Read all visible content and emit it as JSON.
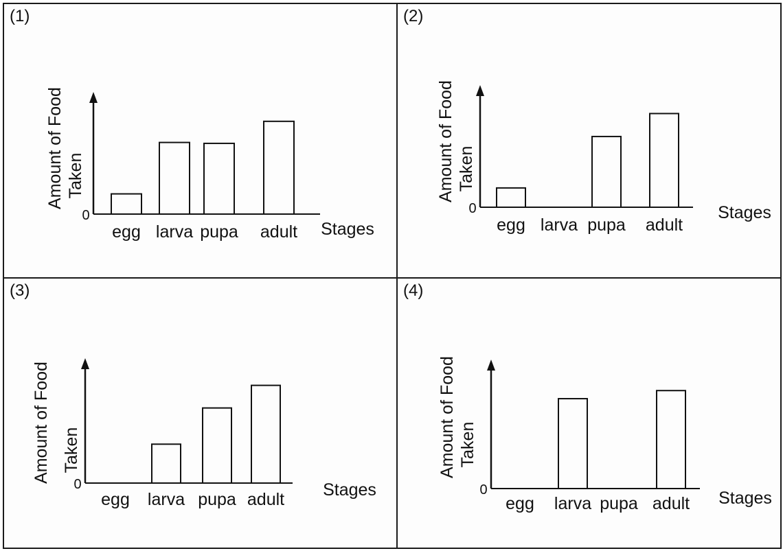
{
  "chart_data": [
    {
      "type": "bar",
      "label": "(1)",
      "ylabel_line1": "Amount of Food",
      "ylabel_line2": "Taken",
      "xlabel": "Stages",
      "origin_label": "0",
      "categories": [
        "egg",
        "larva",
        "pupa",
        "adult"
      ],
      "values": [
        2.2,
        7.8,
        7.7,
        10.1
      ],
      "ylim": [
        0,
        13
      ]
    },
    {
      "type": "bar",
      "label": "(2)",
      "ylabel_line1": "Amount of Food",
      "ylabel_line2": "Taken",
      "xlabel": "Stages",
      "origin_label": "0",
      "categories": [
        "egg",
        "larva",
        "pupa",
        "adult"
      ],
      "values": [
        2.1,
        0,
        7.7,
        10.2
      ],
      "ylim": [
        0,
        13
      ]
    },
    {
      "type": "bar",
      "label": "(3)",
      "ylabel_line1": "Amount of Food",
      "ylabel_line2": "Taken",
      "xlabel": "Stages",
      "origin_label": "0",
      "categories": [
        "egg",
        "larva",
        "pupa",
        "adult"
      ],
      "values": [
        0,
        4.3,
        8.3,
        10.8
      ],
      "ylim": [
        0,
        13.5
      ]
    },
    {
      "type": "bar",
      "label": "(4)",
      "ylabel_line1": "Amount of Food",
      "ylabel_line2": "Taken",
      "xlabel": "Stages",
      "origin_label": "0",
      "categories": [
        "egg",
        "larva",
        "pupa",
        "adult"
      ],
      "values": [
        0,
        8.9,
        0,
        9.7
      ],
      "ylim": [
        0,
        12.5
      ]
    }
  ]
}
